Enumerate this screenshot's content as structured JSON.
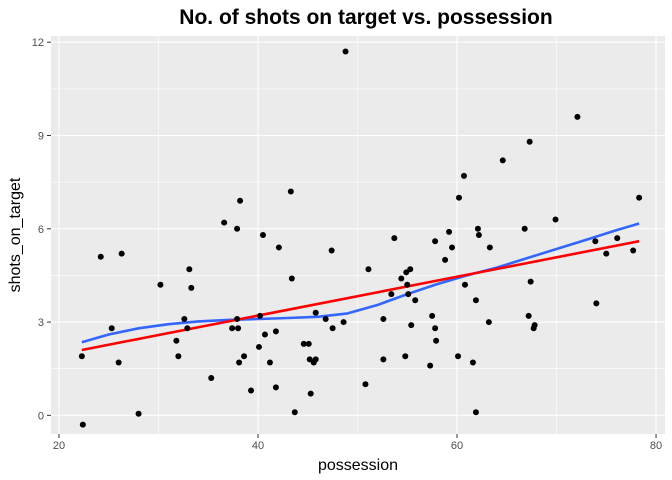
{
  "chart_data": {
    "type": "scatter",
    "title": "No. of shots on target vs. possession",
    "xlabel": "possession",
    "ylabel": "shots_on_target",
    "xlim": [
      19.2,
      80.9
    ],
    "ylim": [
      -0.6,
      12.2
    ],
    "xticks": [
      20,
      40,
      60,
      80
    ],
    "yticks": [
      0,
      3,
      6,
      9,
      12
    ],
    "grid": true,
    "colors": {
      "panel": "#ebebeb",
      "grid": "#ffffff",
      "points": "#000000",
      "smooth_line": "#3366ff",
      "linear_fit": "#ff0000"
    },
    "points": [
      [
        22.3,
        1.9
      ],
      [
        22.4,
        -0.3
      ],
      [
        24.2,
        5.1
      ],
      [
        25.3,
        2.8
      ],
      [
        26.0,
        1.7
      ],
      [
        26.3,
        5.2
      ],
      [
        28.0,
        0.05
      ],
      [
        30.2,
        4.2
      ],
      [
        31.8,
        2.4
      ],
      [
        32.0,
        1.9
      ],
      [
        32.6,
        3.1
      ],
      [
        32.9,
        2.8
      ],
      [
        33.1,
        4.7
      ],
      [
        33.3,
        4.1
      ],
      [
        35.3,
        1.2
      ],
      [
        36.6,
        6.2
      ],
      [
        37.4,
        2.8
      ],
      [
        37.9,
        6.0
      ],
      [
        37.9,
        3.1
      ],
      [
        38.0,
        2.8
      ],
      [
        38.1,
        1.7
      ],
      [
        38.2,
        6.9
      ],
      [
        38.6,
        1.9
      ],
      [
        39.3,
        0.8
      ],
      [
        40.1,
        2.2
      ],
      [
        40.2,
        3.2
      ],
      [
        40.5,
        5.8
      ],
      [
        40.7,
        2.6
      ],
      [
        41.2,
        1.7
      ],
      [
        41.8,
        2.7
      ],
      [
        41.8,
        0.9
      ],
      [
        42.1,
        5.4
      ],
      [
        43.3,
        7.2
      ],
      [
        43.4,
        4.4
      ],
      [
        43.7,
        0.1
      ],
      [
        44.6,
        2.3
      ],
      [
        45.1,
        2.3
      ],
      [
        45.2,
        1.8
      ],
      [
        45.3,
        0.7
      ],
      [
        45.6,
        1.7
      ],
      [
        45.8,
        3.3
      ],
      [
        45.8,
        1.8
      ],
      [
        46.8,
        3.1
      ],
      [
        47.4,
        5.3
      ],
      [
        47.5,
        2.8
      ],
      [
        48.6,
        3.0
      ],
      [
        48.8,
        11.7
      ],
      [
        50.8,
        1.0
      ],
      [
        51.1,
        4.7
      ],
      [
        52.6,
        1.8
      ],
      [
        52.6,
        3.1
      ],
      [
        53.4,
        3.9
      ],
      [
        53.7,
        5.7
      ],
      [
        54.4,
        4.4
      ],
      [
        54.8,
        1.9
      ],
      [
        54.9,
        4.6
      ],
      [
        55.0,
        4.2
      ],
      [
        55.1,
        3.9
      ],
      [
        55.3,
        4.7
      ],
      [
        55.4,
        2.9
      ],
      [
        55.8,
        3.7
      ],
      [
        57.3,
        1.6
      ],
      [
        57.5,
        3.2
      ],
      [
        57.8,
        2.8
      ],
      [
        57.8,
        5.6
      ],
      [
        57.9,
        2.4
      ],
      [
        58.8,
        5.0
      ],
      [
        59.2,
        5.9
      ],
      [
        59.5,
        5.4
      ],
      [
        60.1,
        1.9
      ],
      [
        60.2,
        7.0
      ],
      [
        60.7,
        7.7
      ],
      [
        60.8,
        4.2
      ],
      [
        61.6,
        1.7
      ],
      [
        61.9,
        3.7
      ],
      [
        61.9,
        0.1
      ],
      [
        62.1,
        6.0
      ],
      [
        62.2,
        5.8
      ],
      [
        63.2,
        3.0
      ],
      [
        63.3,
        5.4
      ],
      [
        64.6,
        8.2
      ],
      [
        66.8,
        6.0
      ],
      [
        67.2,
        3.2
      ],
      [
        67.3,
        8.8
      ],
      [
        67.4,
        4.3
      ],
      [
        67.7,
        2.8
      ],
      [
        67.8,
        2.9
      ],
      [
        69.9,
        6.3
      ],
      [
        72.1,
        9.6
      ],
      [
        73.9,
        5.6
      ],
      [
        74.0,
        3.6
      ],
      [
        75.0,
        5.2
      ],
      [
        76.1,
        5.7
      ],
      [
        77.7,
        5.3
      ],
      [
        78.3,
        7.0
      ]
    ],
    "series": [
      {
        "type": "smooth",
        "x": [
          22.3,
          25,
          28,
          31,
          34,
          37,
          40,
          43,
          46,
          49,
          52,
          55,
          58,
          61,
          64,
          67,
          70,
          73,
          76,
          78.3
        ],
        "y": [
          2.35,
          2.6,
          2.8,
          2.93,
          3.02,
          3.07,
          3.1,
          3.13,
          3.17,
          3.28,
          3.55,
          3.9,
          4.22,
          4.5,
          4.75,
          5.05,
          5.35,
          5.65,
          5.95,
          6.17
        ]
      },
      {
        "type": "linear",
        "x": [
          22.3,
          78.3
        ],
        "y": [
          2.1,
          5.6
        ]
      }
    ]
  }
}
